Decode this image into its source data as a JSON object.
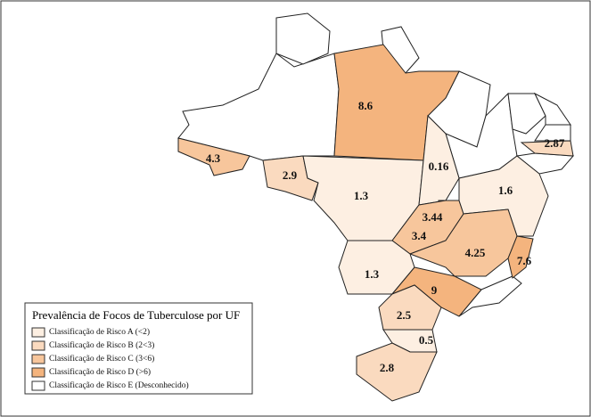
{
  "legend": {
    "title": "Prevalência de Focos de Tuberculose por UF",
    "items": [
      {
        "label": "Classificação de Risco A (<2)",
        "color": "#fdefe2"
      },
      {
        "label": "Classificação de Risco B (2<3)",
        "color": "#fadabf"
      },
      {
        "label": "Classificação de Risco C (3<6)",
        "color": "#f7c69c"
      },
      {
        "label": "Classificação de Risco D (>6)",
        "color": "#f4b47e"
      },
      {
        "label": "Classificação de Risco E (Desconhecido)",
        "color": "#ffffff"
      }
    ]
  },
  "regions": [
    {
      "value": 8.6,
      "class": 3
    },
    {
      "value": 4.3,
      "class": 2
    },
    {
      "value": 2.9,
      "class": 1
    },
    {
      "value": 1.3,
      "class": 0
    },
    {
      "value": 0.16,
      "class": 0
    },
    {
      "value": 3.44,
      "class": 2
    },
    {
      "value": 3.4,
      "class": 2
    },
    {
      "value": 1.6,
      "class": 0
    },
    {
      "value": 2.87,
      "class": 1
    },
    {
      "value": 4.25,
      "class": 2
    },
    {
      "value": 7.6,
      "class": 3
    },
    {
      "value": 1.3,
      "class": 0
    },
    {
      "value": 9,
      "class": 3
    },
    {
      "value": 2.5,
      "class": 1
    },
    {
      "value": 0.5,
      "class": 0
    },
    {
      "value": 2.8,
      "class": 1
    }
  ]
}
